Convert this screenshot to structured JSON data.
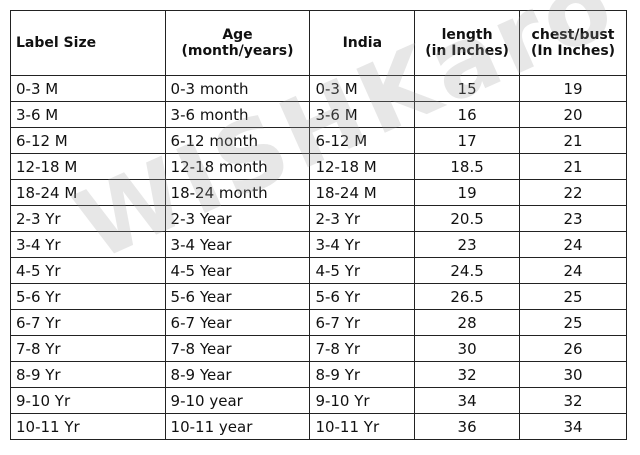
{
  "table": {
    "header": [
      "Label Size",
      "Age\n(month/years)",
      "India",
      "length\n(in Inches)",
      "chest/bust\n(In Inches)"
    ],
    "rows": [
      [
        "0-3 M",
        "0-3 month",
        "0-3 M",
        "15",
        "19"
      ],
      [
        "3-6 M",
        "3-6 month",
        "3-6 M",
        "16",
        "20"
      ],
      [
        "6-12 M",
        "6-12 month",
        "6-12 M",
        "17",
        "21"
      ],
      [
        "12-18 M",
        "12-18 month",
        "12-18 M",
        "18.5",
        "21"
      ],
      [
        "18-24 M",
        "18-24 month",
        "18-24 M",
        "19",
        "22"
      ],
      [
        "2-3 Yr",
        "2-3 Year",
        "2-3 Yr",
        "20.5",
        "23"
      ],
      [
        "3-4 Yr",
        "3-4 Year",
        "3-4 Yr",
        "23",
        "24"
      ],
      [
        "4-5 Yr",
        "4-5 Year",
        "4-5 Yr",
        "24.5",
        "24"
      ],
      [
        "5-6 Yr",
        "5-6 Year",
        "5-6 Yr",
        "26.5",
        "25"
      ],
      [
        "6-7 Yr",
        "6-7 Year",
        "6-7 Yr",
        "28",
        "25"
      ],
      [
        "7-8 Yr",
        "7-8 Year",
        "7-8 Yr",
        "30",
        "26"
      ],
      [
        "8-9 Yr",
        "8-9 Year",
        "8-9 Yr",
        "32",
        "30"
      ],
      [
        "9-10 Yr",
        "9-10 year",
        "9-10 Yr",
        "34",
        "32"
      ],
      [
        "10-11 Yr",
        "10-11 year",
        "10-11 Yr",
        "36",
        "34"
      ]
    ]
  },
  "watermark": "WISHKaro"
}
